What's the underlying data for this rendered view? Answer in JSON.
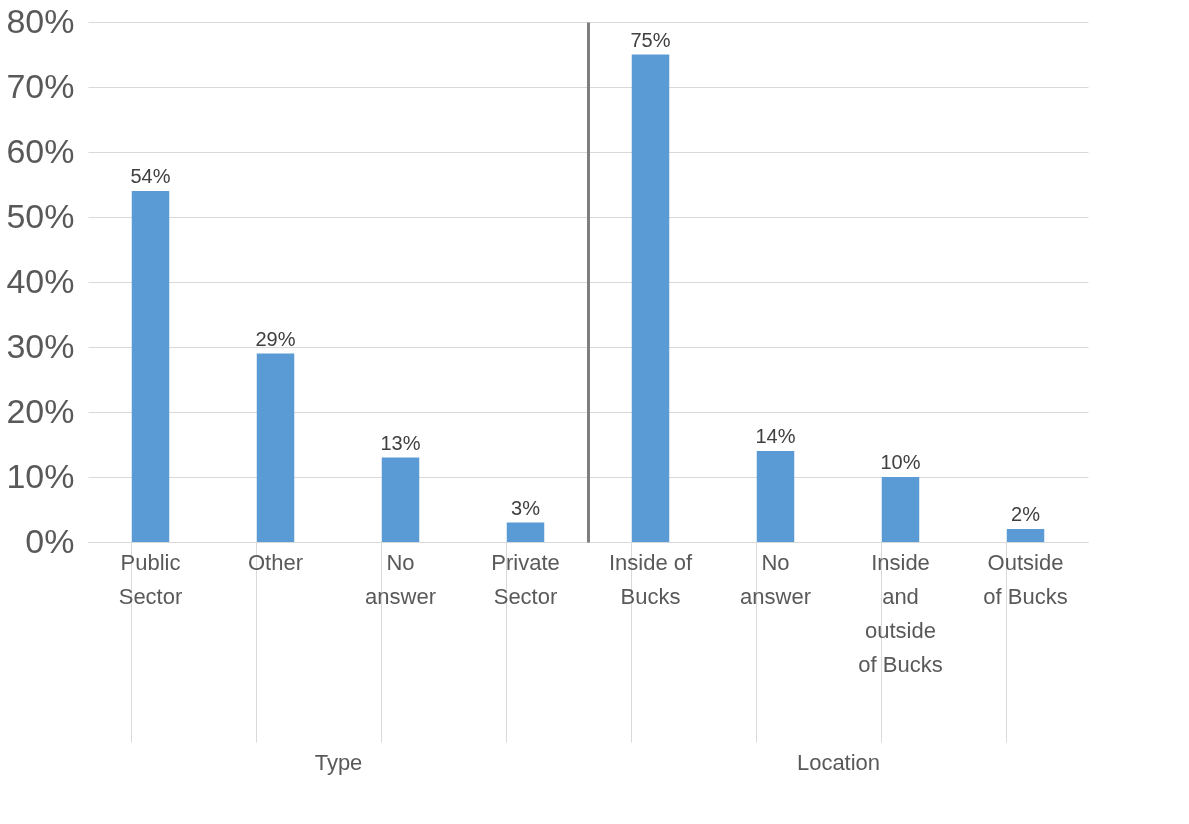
{
  "chart_data": [
    {
      "type": "bar",
      "xlabel": "Type",
      "categories": [
        "Public\nSector",
        "Other",
        "No\nanswer",
        "Private\nSector"
      ],
      "series": [
        {
          "color": "#5b9bd5",
          "values": [
            54,
            29,
            13,
            3
          ],
          "value_labels": [
            "54%",
            "29%",
            "13%",
            "3%"
          ]
        }
      ],
      "ylim": [
        0,
        80
      ],
      "yticks": [
        {
          "value": 0,
          "label": "0%"
        },
        {
          "value": 10,
          "label": "10%"
        },
        {
          "value": 20,
          "label": "20%"
        },
        {
          "value": 30,
          "label": "30%"
        },
        {
          "value": 40,
          "label": "40%"
        },
        {
          "value": 50,
          "label": "50%"
        },
        {
          "value": 60,
          "label": "60%"
        },
        {
          "value": 70,
          "label": "70%"
        },
        {
          "value": 80,
          "label": "80%"
        }
      ],
      "grid": "y"
    },
    {
      "type": "bar",
      "xlabel": "Location",
      "categories": [
        "Inside of\nBucks",
        "No\nanswer",
        "Inside\nand\noutside\nof Bucks",
        "Outside\nof Bucks"
      ],
      "series": [
        {
          "color": "#5b9bd5",
          "values": [
            75,
            14,
            10,
            2
          ],
          "value_labels": [
            "75%",
            "14%",
            "10%",
            "2%"
          ]
        }
      ],
      "ylim": [
        0,
        80
      ],
      "yticks": [
        0,
        10,
        20,
        30,
        40,
        50,
        60,
        70,
        80
      ],
      "grid": "y",
      "tick_labels": "x"
    }
  ]
}
